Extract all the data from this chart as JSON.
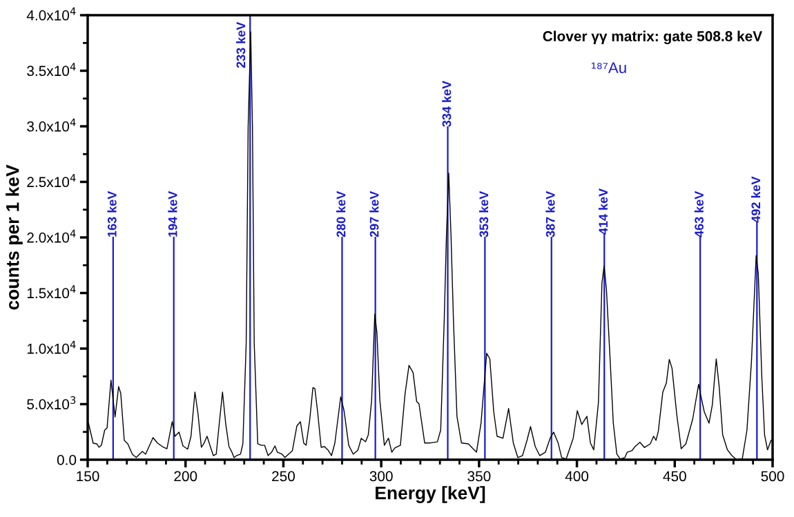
{
  "chart_data": {
    "type": "line",
    "title": "Clover γγ matrix: gate 508.8 keV",
    "xlabel": "Energy [keV]",
    "ylabel": "counts per 1 keV",
    "xlim": [
      150,
      500
    ],
    "xticks": [
      150,
      200,
      250,
      300,
      350,
      400,
      450,
      500
    ],
    "ylim": [
      0,
      40000
    ],
    "yticks": [
      {
        "value": 0,
        "label": "0.0"
      },
      {
        "value": 5000,
        "label": "5.0x10$^{3}$"
      },
      {
        "value": 10000,
        "label": "1.0x10$^{4}$"
      },
      {
        "value": 15000,
        "label": "1.5x10$^{4}$"
      },
      {
        "value": 20000,
        "label": "2.0x10$^{4}$"
      },
      {
        "value": 25000,
        "label": "2.5x10$^{4}$"
      },
      {
        "value": 30000,
        "label": "3.0x10$^{4}$"
      },
      {
        "value": 35000,
        "label": "3.5x10$^{4}$"
      },
      {
        "value": 40000,
        "label": "4.0x10$^{4}$"
      }
    ],
    "grid": false,
    "legend": false,
    "marker": "none",
    "line_style": "solid",
    "x": [
      150.4,
      152.8,
      154.6,
      155.8,
      157,
      158.7,
      159.9,
      161.9,
      164,
      165.8,
      166.9,
      168.7,
      170.5,
      172.8,
      174.8,
      177.9,
      179.6,
      183.4,
      185.7,
      188.7,
      190.5,
      193.2,
      194.6,
      196.7,
      198.7,
      201.1,
      202.8,
      204.8,
      206.4,
      208.1,
      209.3,
      211,
      212.8,
      214.2,
      215.7,
      216.9,
      218.9,
      220.5,
      222.2,
      223.7,
      224.8,
      226.1,
      228.1,
      229.3,
      231,
      232,
      233.3,
      234.2,
      235.1,
      236.9,
      238.7,
      240.4,
      242.2,
      244,
      245.7,
      246.9,
      249.3,
      250.8,
      254.6,
      256.9,
      258.7,
      260.4,
      261.6,
      263.4,
      265.1,
      266.1,
      267.5,
      269.3,
      271,
      272.8,
      274.6,
      276.3,
      279.3,
      281,
      283.4,
      285.7,
      288.1,
      289.8,
      292,
      293.4,
      295.1,
      296.7,
      297.8,
      299.3,
      301.6,
      303.7,
      305.4,
      307,
      309.8,
      312.2,
      314.2,
      316.3,
      318.1,
      319.3,
      322.2,
      325.1,
      328.7,
      330.4,
      332.2,
      333.3,
      334.5,
      335.7,
      336.9,
      338.7,
      341,
      344.5,
      346.9,
      348.7,
      351,
      353.9,
      355.5,
      357.5,
      359.2,
      362.2,
      365.1,
      367.5,
      369.8,
      372.2,
      374.5,
      376.3,
      378.7,
      381,
      383.9,
      386.3,
      388.1,
      390.4,
      392.2,
      394.5,
      398.1,
      400.2,
      402.5,
      405.1,
      406.9,
      408.6,
      411,
      412.8,
      413.9,
      415.1,
      416.9,
      418.6,
      420.4,
      422.2,
      424.5,
      425.7,
      428.1,
      429.8,
      432.2,
      434.5,
      437.5,
      439.2,
      440.4,
      441.6,
      443.9,
      445.7,
      447.2,
      448.6,
      451,
      453.3,
      455.7,
      459.2,
      462.2,
      463.3,
      465.1,
      467.5,
      469.2,
      471.2,
      472.7,
      474.5,
      476.9,
      479.2,
      481.6,
      484.5,
      486.9,
      489.2,
      491.6,
      492.7,
      494.5,
      495.9,
      497.4,
      499.2,
      500
    ],
    "series": [
      {
        "color": "#000000",
        "values": [
          3290,
          1490,
          1430,
          1120,
          1300,
          2670,
          2860,
          7160,
          3850,
          6580,
          5960,
          1740,
          1430,
          500,
          200,
          750,
          500,
          1990,
          1490,
          1120,
          990,
          3420,
          2110,
          2480,
          1240,
          950,
          2110,
          6090,
          4100,
          1120,
          1430,
          2110,
          1120,
          370,
          500,
          2670,
          6090,
          3290,
          1180,
          680,
          190,
          370,
          500,
          1430,
          10500,
          30000,
          38500,
          30000,
          10500,
          1430,
          1300,
          1300,
          370,
          680,
          1240,
          680,
          500,
          200,
          810,
          3040,
          3420,
          1490,
          1300,
          3480,
          6480,
          6400,
          4300,
          1120,
          1180,
          870,
          370,
          1490,
          5650,
          4410,
          1300,
          500,
          870,
          1930,
          1610,
          2240,
          5340,
          13100,
          11450,
          5340,
          1300,
          1930,
          680,
          1060,
          1300,
          5960,
          8490,
          7830,
          5240,
          5030,
          1510,
          1510,
          1610,
          2670,
          12600,
          20000,
          25800,
          20000,
          12600,
          3910,
          1510,
          1430,
          990,
          680,
          3290,
          9580,
          9070,
          4300,
          2110,
          1930,
          4610,
          1510,
          200,
          370,
          1740,
          2980,
          1180,
          370,
          680,
          1930,
          2480,
          1510,
          190,
          60,
          1930,
          4410,
          3170,
          3910,
          1510,
          890,
          5150,
          15900,
          17450,
          15280,
          9270,
          3290,
          500,
          60,
          190,
          680,
          810,
          1200,
          1570,
          1100,
          1430,
          2110,
          1740,
          2550,
          6090,
          6890,
          9020,
          8240,
          4100,
          990,
          1430,
          3680,
          6790,
          5770,
          4300,
          3290,
          4930,
          9070,
          6580,
          2240,
          890,
          370,
          0,
          60,
          2670,
          8860,
          18380,
          16720,
          7410,
          2240,
          890,
          1740,
          1830
        ]
      }
    ],
    "annotations": [
      "¹⁸⁷Au"
    ],
    "ref_lines": [
      {
        "axis": "x",
        "value": 163,
        "label": "163 keV",
        "color": "#1a1ad0"
      },
      {
        "axis": "x",
        "value": 194,
        "label": "194 keV",
        "color": "#1a1ad0"
      },
      {
        "axis": "x",
        "value": 233,
        "label": "233 keV",
        "color": "#1a1ad0"
      },
      {
        "axis": "x",
        "value": 280,
        "label": "280 keV",
        "color": "#1a1ad0"
      },
      {
        "axis": "x",
        "value": 297,
        "label": "297 keV",
        "color": "#1a1ad0"
      },
      {
        "axis": "x",
        "value": 334,
        "label": "334 keV",
        "color": "#1a1ad0"
      },
      {
        "axis": "x",
        "value": 353,
        "label": "353 keV",
        "color": "#1a1ad0"
      },
      {
        "axis": "x",
        "value": 387,
        "label": "387 keV",
        "color": "#1a1ad0"
      },
      {
        "axis": "x",
        "value": 414,
        "label": "414 keV",
        "color": "#1a1ad0"
      },
      {
        "axis": "x",
        "value": 463,
        "label": "463 keV",
        "color": "#1a1ad0"
      },
      {
        "axis": "x",
        "value": 492,
        "label": "492 keV",
        "color": "#1a1ad0"
      }
    ]
  }
}
